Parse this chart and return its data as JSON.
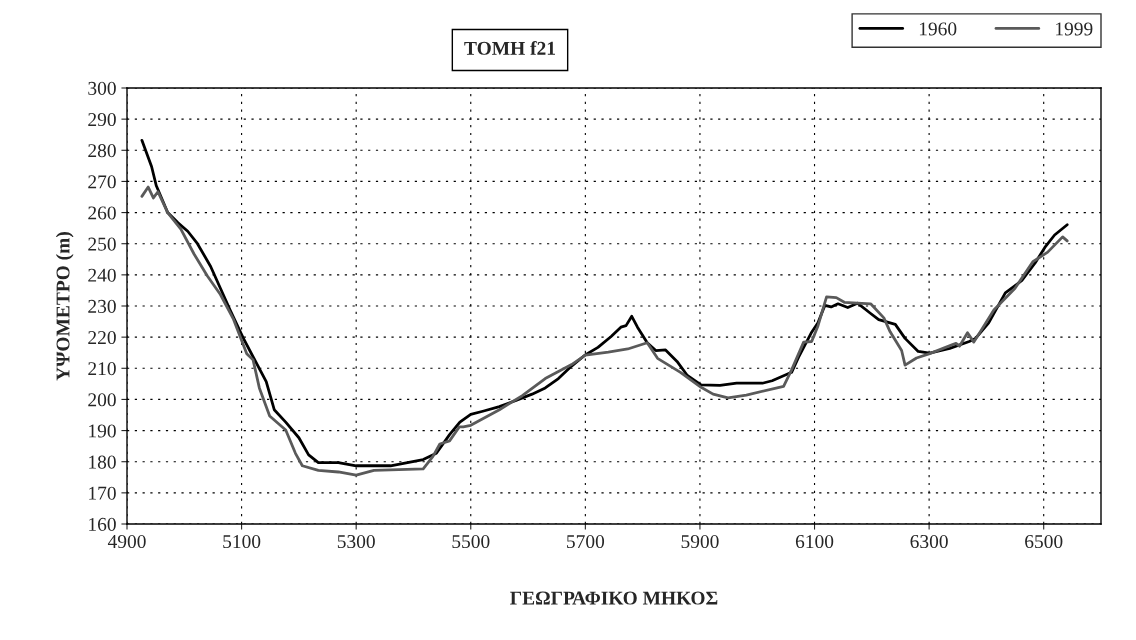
{
  "chart_data": {
    "type": "line",
    "title": "ΤΟΜΗ f21",
    "xlabel": "ΓΕΩΓΡΑΦΙΚΟ ΜΗΚΟΣ",
    "ylabel": "ΥΨΟΜΕΤΡΟ (m)",
    "xlim": [
      4900,
      6600
    ],
    "xticks": [
      4900,
      5100,
      5300,
      5500,
      5700,
      5900,
      6100,
      6300,
      6500
    ],
    "ylim": [
      160,
      300
    ],
    "yticks": [
      160,
      170,
      180,
      190,
      200,
      210,
      220,
      230,
      240,
      250,
      260,
      270,
      280,
      290,
      300
    ],
    "grid": true,
    "legend": "top right",
    "line_style": "solid",
    "series": [
      {
        "name": "1960",
        "color": "#000000",
        "x": [
          4926,
          4943,
          4951,
          4971,
          4989,
          5006,
          5023,
          5046,
          5063,
          5080,
          5103,
          5120,
          5143,
          5157,
          5177,
          5200,
          5217,
          5234,
          5269,
          5300,
          5360,
          5417,
          5440,
          5463,
          5481,
          5500,
          5521,
          5550,
          5579,
          5607,
          5630,
          5653,
          5676,
          5699,
          5722,
          5745,
          5762,
          5771,
          5781,
          5791,
          5808,
          5823,
          5840,
          5860,
          5878,
          5902,
          5935,
          5964,
          6009,
          6026,
          6060,
          6072,
          6095,
          6106,
          6118,
          6129,
          6141,
          6158,
          6175,
          6198,
          6212,
          6241,
          6258,
          6281,
          6301,
          6336,
          6370,
          6381,
          6404,
          6433,
          6462,
          6485,
          6502,
          6519,
          6541
        ],
        "values": [
          283.2,
          274.7,
          268.7,
          260,
          256.7,
          254,
          250,
          242.7,
          235.7,
          228.7,
          219.7,
          213.7,
          205.7,
          196.7,
          192.7,
          187.7,
          182.2,
          179.7,
          179.7,
          178.7,
          178.7,
          180.7,
          182.7,
          188.7,
          192.7,
          195.2,
          196.2,
          197.7,
          199.7,
          201.7,
          203.7,
          206.7,
          210.7,
          214.2,
          216.7,
          220.2,
          223.2,
          223.7,
          226.7,
          223.2,
          218.2,
          215.7,
          215.9,
          212.2,
          207.7,
          204.7,
          204.5,
          205.2,
          205.2,
          206,
          208.7,
          213.5,
          221.6,
          224.6,
          230.2,
          229.7,
          230.7,
          229.5,
          230.9,
          227.6,
          225.6,
          224.1,
          219.6,
          215.4,
          214.9,
          216.4,
          218.6,
          219.6,
          224.6,
          234.2,
          238.2,
          243.8,
          248.8,
          252.8,
          256.1
        ]
      },
      {
        "name": "1999",
        "color": "#5a5a5a",
        "x": [
          4926,
          4937,
          4946,
          4954,
          4971,
          4994,
          5017,
          5040,
          5063,
          5086,
          5109,
          5120,
          5131,
          5149,
          5177,
          5194,
          5206,
          5234,
          5269,
          5300,
          5331,
          5417,
          5434,
          5446,
          5463,
          5480,
          5487,
          5500,
          5550,
          5590,
          5630,
          5676,
          5700,
          5740,
          5774,
          5808,
          5826,
          5866,
          5902,
          5923,
          5949,
          5981,
          6046,
          6060,
          6081,
          6095,
          6106,
          6121,
          6138,
          6152,
          6198,
          6221,
          6232,
          6252,
          6258,
          6278,
          6301,
          6341,
          6347,
          6353,
          6367,
          6378,
          6413,
          6450,
          6481,
          6507,
          6533,
          6541
        ],
        "values": [
          265.2,
          268.2,
          264.7,
          266.7,
          260,
          254.7,
          246.7,
          239.7,
          233.7,
          225.7,
          214.7,
          212.7,
          203.7,
          194.7,
          190.2,
          182.7,
          178.7,
          177.2,
          176.7,
          175.7,
          177.2,
          177.7,
          181.7,
          185.7,
          186.7,
          191.2,
          191.2,
          191.7,
          196.7,
          201.2,
          206.7,
          211.2,
          214.2,
          215.2,
          216.2,
          218.2,
          213.2,
          208.7,
          203.9,
          201.7,
          200.5,
          201.4,
          204.2,
          209.5,
          218.4,
          218.6,
          223.6,
          232.9,
          232.7,
          231.2,
          230.7,
          226.2,
          221.7,
          215.7,
          211,
          213.3,
          214.7,
          217.6,
          218,
          217.1,
          221.4,
          218.4,
          228.7,
          235.7,
          244.2,
          247.3,
          252.2,
          250.9
        ]
      }
    ]
  }
}
